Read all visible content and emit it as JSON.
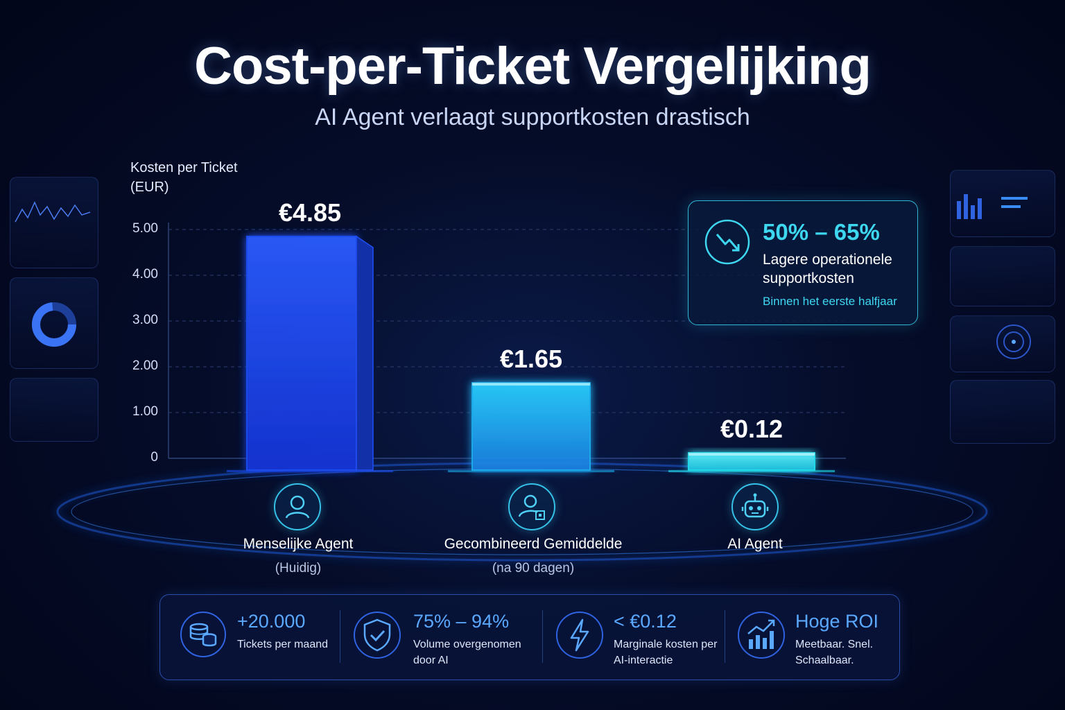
{
  "title": "Cost-per-Ticket Vergelijking",
  "subtitle": "AI Agent verlaagt supportkosten drastisch",
  "chart_data": {
    "type": "bar",
    "ylabel_line1": "Kosten per Ticket",
    "ylabel_line2": "(EUR)",
    "ylim": [
      0,
      5
    ],
    "yticks": [
      "0",
      "1.00",
      "2.00",
      "3.00",
      "4.00",
      "5.00"
    ],
    "grid": true,
    "categories": [
      "Menselijke Agent",
      "Gecombineerd Gemiddelde",
      "AI Agent"
    ],
    "category_notes": [
      "(Huidig)",
      "(na 90 dagen)",
      ""
    ],
    "values": [
      4.85,
      1.65,
      0.12
    ],
    "value_labels": [
      "€4.85",
      "€1.65",
      "€0.12"
    ],
    "bar_colors": [
      "#1f4ff5",
      "#1fb0f0",
      "#22e3f0"
    ]
  },
  "callout": {
    "headline": "50% – 65%",
    "line1": "Lagere operationele",
    "line2": "supportkosten",
    "note": "Binnen het eerste halfjaar",
    "icon": "trend-down-icon",
    "accent": "#3ed7f0"
  },
  "stats": [
    {
      "value": "+20.000",
      "desc1": "Tickets per maand",
      "desc2": "",
      "icon": "database-icon"
    },
    {
      "value": "75% – 94%",
      "desc1": "Volume overgenomen",
      "desc2": "door AI",
      "icon": "shield-check-icon"
    },
    {
      "value": "< €0.12",
      "desc1": "Marginale kosten per",
      "desc2": "AI-interactie",
      "icon": "lightning-icon"
    },
    {
      "value": "Hoge ROI",
      "desc1": "Meetbaar. Snel.",
      "desc2": "Schaalbaar.",
      "icon": "growth-chart-icon"
    }
  ]
}
